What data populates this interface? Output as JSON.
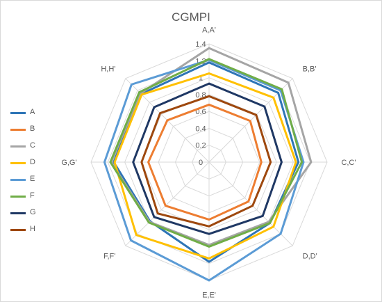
{
  "chart_data": {
    "type": "radar",
    "title": "CGMPI",
    "categories": [
      "A,A'",
      "B,B'",
      "C,C'",
      "D,D'",
      "E,E'",
      "F,F'",
      "G,G'",
      "H,H'"
    ],
    "rlim": [
      0,
      1.4
    ],
    "ticks": [
      "0",
      "0.2",
      "0.4",
      "0.6",
      "0.8",
      "1",
      "1.2",
      "1.4"
    ],
    "grid": true,
    "legend_position": "left",
    "series": [
      {
        "name": "A",
        "color": "#2e75b6",
        "values": [
          1.18,
          1.16,
          1.06,
          1.02,
          1.18,
          0.99,
          1.13,
          1.14
        ]
      },
      {
        "name": "B",
        "color": "#ed7d31",
        "values": [
          0.68,
          0.69,
          0.62,
          0.66,
          0.68,
          0.73,
          0.72,
          0.7
        ]
      },
      {
        "name": "C",
        "color": "#a5a5a5",
        "values": [
          1.35,
          1.33,
          1.21,
          1.0,
          0.98,
          1.0,
          1.16,
          1.15
        ]
      },
      {
        "name": "D",
        "color": "#ffc000",
        "values": [
          1.05,
          1.08,
          1.03,
          1.08,
          1.14,
          1.22,
          1.12,
          1.13
        ]
      },
      {
        "name": "E",
        "color": "#5b9bd5",
        "values": [
          1.21,
          1.2,
          1.12,
          1.2,
          1.4,
          1.31,
          1.24,
          1.3
        ]
      },
      {
        "name": "F",
        "color": "#70ad47",
        "values": [
          1.22,
          1.22,
          1.1,
          1.02,
          1.0,
          1.01,
          1.17,
          1.17
        ]
      },
      {
        "name": "G",
        "color": "#1f3864",
        "values": [
          0.93,
          0.93,
          0.86,
          0.9,
          0.85,
          0.92,
          0.9,
          0.92
        ]
      },
      {
        "name": "H",
        "color": "#9e480e",
        "values": [
          0.78,
          0.79,
          0.73,
          0.73,
          0.76,
          0.86,
          0.8,
          0.82
        ]
      }
    ]
  }
}
